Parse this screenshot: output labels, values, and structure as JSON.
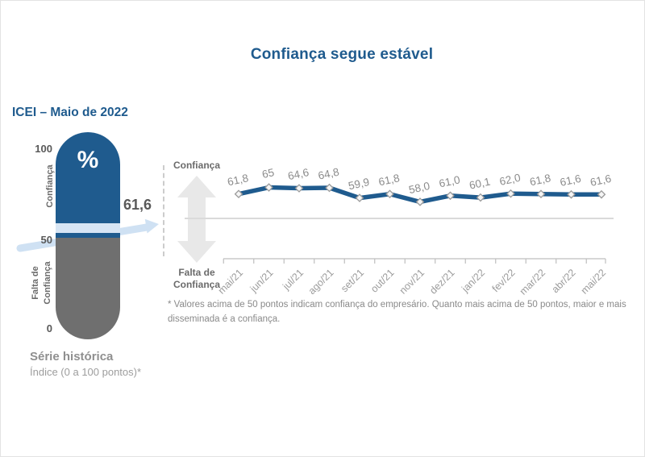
{
  "page": {
    "title": "Confiança segue estável"
  },
  "left_panel": {
    "heading": "ICEI – Maio de 2022",
    "gauge": {
      "percent_symbol": "%",
      "scale_max": "100",
      "scale_mid": "50",
      "scale_min": "0",
      "upper_label": "Confiança",
      "lower_label_line1": "Falta de",
      "lower_label_line2": "Confiança",
      "current_value": "61,6"
    },
    "caption_title": "Série histórica",
    "caption_subtitle": "Índice (0 a 100 pontos)*"
  },
  "chart_panel": {
    "upper_axis_label": "Confiança",
    "lower_axis_label_line1": "Falta de",
    "lower_axis_label_line2": "Confiança",
    "footnote": "* Valores acima de 50 pontos indicam confiança do empresário. Quanto mais acima de 50 pontos, maior e mais disseminada é a confiança."
  },
  "chart_data": {
    "type": "line",
    "title": "Confiança segue estável",
    "categories": [
      "mai/21",
      "jun/21",
      "jul/21",
      "ago/21",
      "set/21",
      "out/21",
      "nov/21",
      "dez/21",
      "jan/22",
      "fev/22",
      "mar/22",
      "abr/22",
      "mai/22"
    ],
    "values": [
      61.8,
      65,
      64.6,
      64.8,
      59.9,
      61.8,
      58.0,
      61.0,
      60.1,
      62.0,
      61.8,
      61.6,
      61.6
    ],
    "value_labels": [
      "61,8",
      "65",
      "64,6",
      "64,8",
      "59,9",
      "61,8",
      "58,0",
      "61,0",
      "60,1",
      "62,0",
      "61,8",
      "61,6",
      "61,6"
    ],
    "baseline": 50,
    "ylim": [
      0,
      100
    ],
    "xlabel": "",
    "ylabel": "",
    "grid": false,
    "legend": "none",
    "line_color": "#1f5b8e",
    "marker": "diamond"
  },
  "colors": {
    "brand_blue": "#1f5b8e",
    "gauge_gray": "#6f6f6f",
    "light_blue_arrow": "#cfe1f3",
    "label_gray": "#8c8c8c",
    "baseline_gray": "#dadada",
    "big_arrow_gray": "#e8e8e8"
  }
}
